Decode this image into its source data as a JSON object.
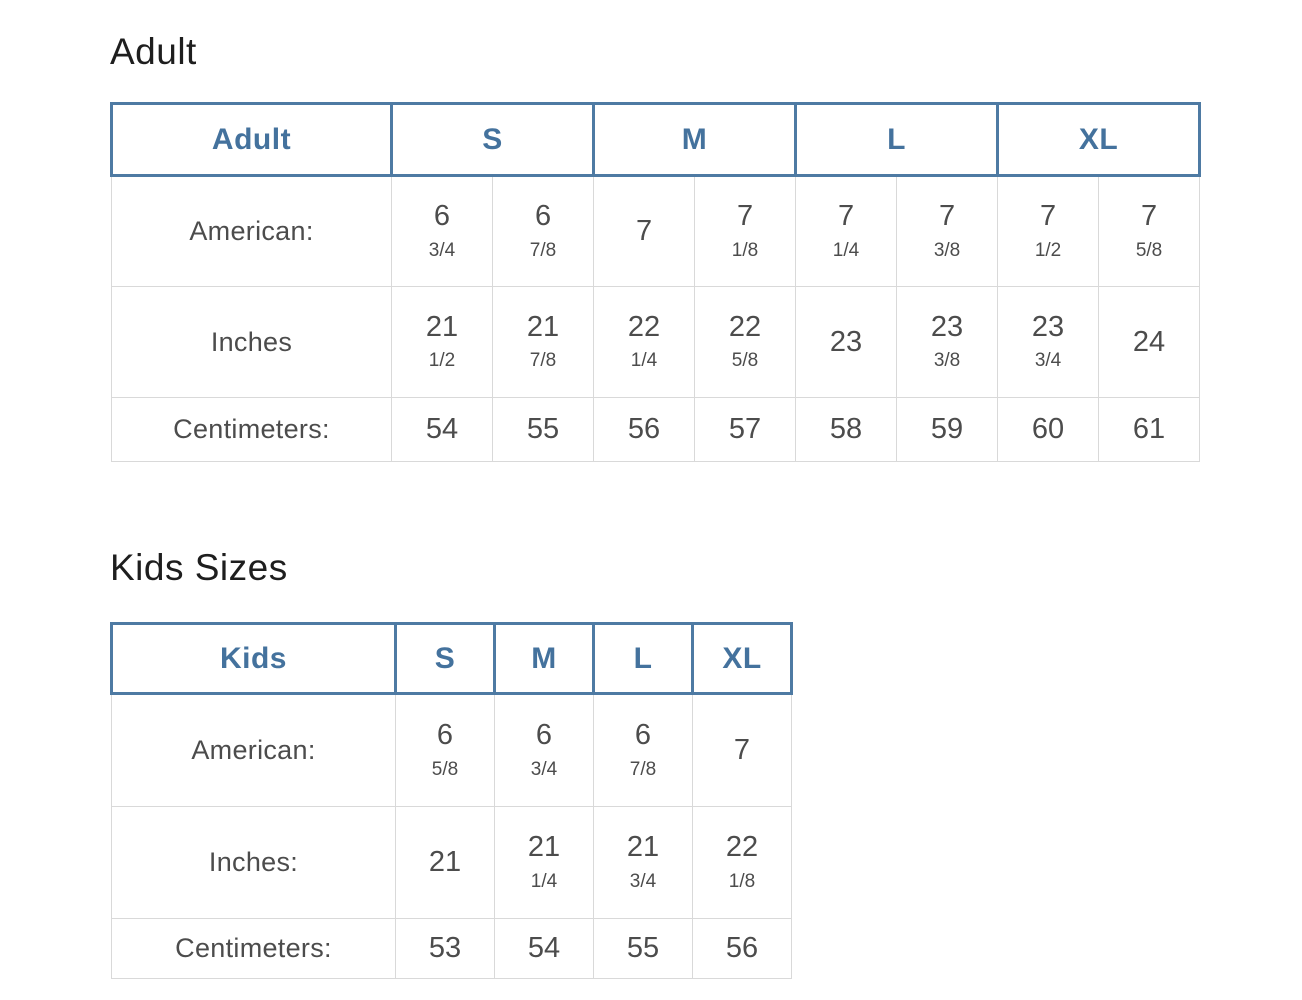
{
  "colors": {
    "header_text_blue": "#44729d",
    "header_border_blue": "#4e7aa3",
    "grid_line_gray": "#d9d9d9",
    "body_text_gray": "#4c4c4c",
    "title_text": "#1e1e1e"
  },
  "adult_section": {
    "title": "Adult",
    "table": {
      "header": {
        "label": "Adult",
        "sizes": [
          "S",
          "M",
          "L",
          "XL"
        ]
      },
      "rows": [
        {
          "label": "American:",
          "values": [
            "6 3/4",
            "6 7/8",
            "7",
            "7 1/8",
            "7 1/4",
            "7 3/8",
            "7 1/2",
            "7 5/8"
          ]
        },
        {
          "label": "Inches",
          "values": [
            "21 1/2",
            "21 7/8",
            "22 1/4",
            "22 5/8",
            "23",
            "23 3/8",
            "23 3/4",
            "24"
          ]
        },
        {
          "label": "Centimeters:",
          "values": [
            "54",
            "55",
            "56",
            "57",
            "58",
            "59",
            "60",
            "61"
          ]
        }
      ]
    }
  },
  "kids_section": {
    "title": "Kids Sizes",
    "table": {
      "header": {
        "label": "Kids",
        "sizes": [
          "S",
          "M",
          "L",
          "XL"
        ]
      },
      "rows": [
        {
          "label": "American:",
          "values": [
            "6 5/8",
            "6 3/4",
            "6 7/8",
            "7"
          ]
        },
        {
          "label": "Inches:",
          "values": [
            "21",
            "21 1/4",
            "21 3/4",
            "22 1/8"
          ]
        },
        {
          "label": "Centimeters:",
          "values": [
            "53",
            "54",
            "55",
            "56"
          ]
        }
      ]
    }
  }
}
